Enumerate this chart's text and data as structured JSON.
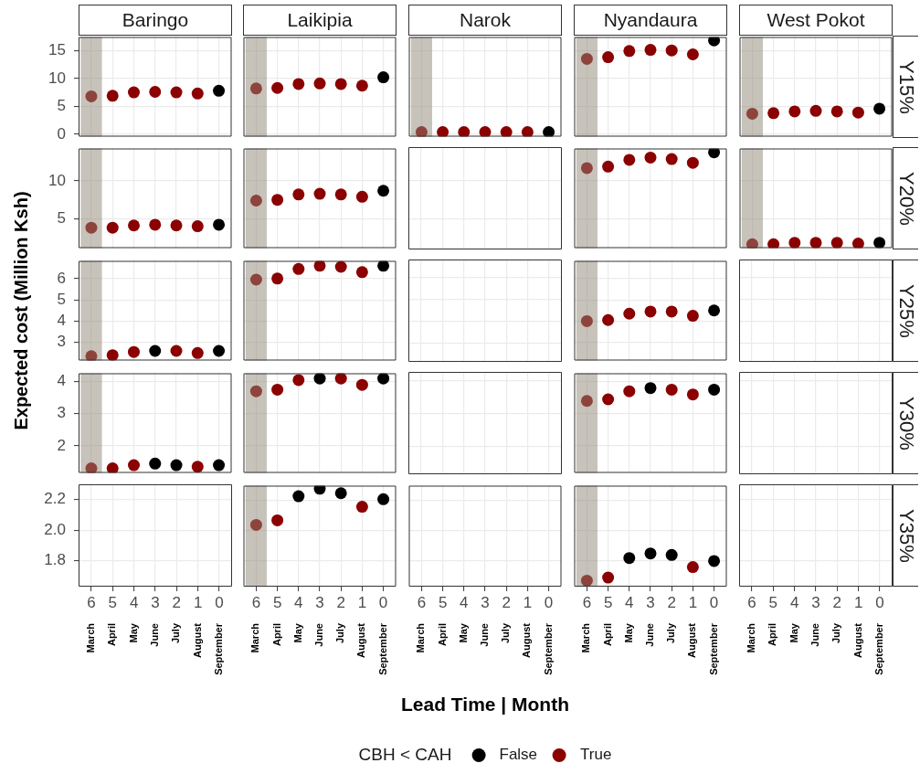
{
  "chart_data": [
    {
      "type": "scatter",
      "title": "Baringo",
      "x": [
        6,
        5,
        4,
        3,
        2,
        1,
        0
      ],
      "series": [
        {
          "color": "#000000",
          "values": [
            null,
            null,
            null,
            null,
            null,
            null,
            7.8
          ]
        },
        {
          "color": "#8b0000",
          "values": [
            6.8,
            6.9,
            7.5,
            7.6,
            7.5,
            7.3,
            null
          ]
        }
      ],
      "xlim": [
        6.6,
        -0.6
      ],
      "xticks": [
        6,
        5,
        4,
        3,
        2,
        1,
        0
      ],
      "ylim": [
        -0.4,
        17.4
      ],
      "yticks": [
        0,
        5,
        10,
        15
      ],
      "bands": [
        {
          "axis": "x",
          "from": 6.5,
          "to": 5.5,
          "color": "#c7c3bb"
        }
      ],
      "grid": true,
      "marker": "circle",
      "tick_labels": "y"
    },
    {
      "type": "scatter",
      "title": "Laikipia",
      "x": [
        6,
        5,
        4,
        3,
        2,
        1,
        0
      ],
      "series": [
        {
          "color": "#000000",
          "values": [
            null,
            null,
            null,
            null,
            null,
            null,
            10.2
          ]
        },
        {
          "color": "#8b0000",
          "values": [
            8.2,
            8.3,
            9.0,
            9.1,
            9.0,
            8.7,
            null
          ]
        }
      ],
      "xlim": [
        6.6,
        -0.6
      ],
      "xticks": [
        6,
        5,
        4,
        3,
        2,
        1,
        0
      ],
      "ylim": [
        -0.4,
        17.4
      ],
      "yticks": [
        0,
        5,
        10,
        15
      ],
      "bands": [
        {
          "axis": "x",
          "from": 6.5,
          "to": 5.5,
          "color": "#c7c3bb"
        }
      ],
      "grid": true,
      "marker": "circle",
      "tick_labels": false
    },
    {
      "type": "scatter",
      "title": "Narok",
      "x": [
        6,
        5,
        4,
        3,
        2,
        1,
        0
      ],
      "series": [
        {
          "color": "#000000",
          "values": [
            null,
            null,
            null,
            null,
            null,
            null,
            0.4
          ]
        },
        {
          "color": "#8b0000",
          "values": [
            0.4,
            0.4,
            0.4,
            0.4,
            0.4,
            0.4,
            null
          ]
        }
      ],
      "xlim": [
        6.6,
        -0.6
      ],
      "xticks": [
        6,
        5,
        4,
        3,
        2,
        1,
        0
      ],
      "ylim": [
        -0.4,
        17.4
      ],
      "yticks": [
        0,
        5,
        10,
        15
      ],
      "bands": [
        {
          "axis": "x",
          "from": 6.5,
          "to": 5.5,
          "color": "#c7c3bb"
        }
      ],
      "grid": true,
      "marker": "circle",
      "tick_labels": false
    },
    {
      "type": "scatter",
      "title": "Nyandaura",
      "x": [
        6,
        5,
        4,
        3,
        2,
        1,
        0
      ],
      "series": [
        {
          "color": "#000000",
          "values": [
            null,
            null,
            null,
            null,
            null,
            null,
            16.8
          ]
        },
        {
          "color": "#8b0000",
          "values": [
            13.5,
            13.8,
            14.9,
            15.1,
            15.0,
            14.3,
            null
          ]
        }
      ],
      "xlim": [
        6.6,
        -0.6
      ],
      "xticks": [
        6,
        5,
        4,
        3,
        2,
        1,
        0
      ],
      "ylim": [
        -0.4,
        17.4
      ],
      "yticks": [
        0,
        5,
        10,
        15
      ],
      "bands": [
        {
          "axis": "x",
          "from": 6.5,
          "to": 5.5,
          "color": "#c7c3bb"
        }
      ],
      "grid": true,
      "marker": "circle",
      "tick_labels": false
    },
    {
      "type": "scatter",
      "title": "West Pokot",
      "y2label": "Y15%",
      "x": [
        6,
        5,
        4,
        3,
        2,
        1,
        0
      ],
      "series": [
        {
          "color": "#000000",
          "values": [
            null,
            null,
            null,
            null,
            null,
            null,
            4.6
          ]
        },
        {
          "color": "#8b0000",
          "values": [
            3.7,
            3.8,
            4.1,
            4.2,
            4.1,
            3.9,
            null
          ]
        }
      ],
      "xlim": [
        6.6,
        -0.6
      ],
      "xticks": [
        6,
        5,
        4,
        3,
        2,
        1,
        0
      ],
      "ylim": [
        -0.4,
        17.4
      ],
      "yticks": [
        0,
        5,
        10,
        15
      ],
      "bands": [
        {
          "axis": "x",
          "from": 6.5,
          "to": 5.5,
          "color": "#c7c3bb"
        }
      ],
      "grid": true,
      "marker": "circle",
      "tick_labels": false
    },
    {
      "type": "scatter",
      "x": [
        6,
        5,
        4,
        3,
        2,
        1,
        0
      ],
      "series": [
        {
          "color": "#000000",
          "values": [
            null,
            null,
            null,
            null,
            null,
            null,
            4.2
          ]
        },
        {
          "color": "#8b0000",
          "values": [
            3.8,
            3.8,
            4.1,
            4.2,
            4.1,
            4.0,
            null
          ]
        }
      ],
      "xlim": [
        6.6,
        -0.6
      ],
      "xticks": [
        6,
        5,
        4,
        3,
        2,
        1,
        0
      ],
      "ylim": [
        1.1,
        14.3
      ],
      "yticks": [
        5,
        10
      ],
      "bands": [
        {
          "axis": "x",
          "from": 6.5,
          "to": 5.5,
          "color": "#c7c3bb"
        }
      ],
      "grid": true,
      "marker": "circle",
      "tick_labels": "y"
    },
    {
      "type": "scatter",
      "x": [
        6,
        5,
        4,
        3,
        2,
        1,
        0
      ],
      "series": [
        {
          "color": "#000000",
          "values": [
            null,
            null,
            null,
            null,
            null,
            null,
            8.7
          ]
        },
        {
          "color": "#8b0000",
          "values": [
            7.4,
            7.5,
            8.2,
            8.3,
            8.2,
            7.9,
            null
          ]
        }
      ],
      "xlim": [
        6.6,
        -0.6
      ],
      "xticks": [
        6,
        5,
        4,
        3,
        2,
        1,
        0
      ],
      "ylim": [
        1.1,
        14.3
      ],
      "yticks": [
        5,
        10
      ],
      "bands": [
        {
          "axis": "x",
          "from": 6.5,
          "to": 5.5,
          "color": "#c7c3bb"
        }
      ],
      "grid": true,
      "marker": "circle",
      "tick_labels": false
    },
    {
      "type": "scatter",
      "xlim": [
        6.6,
        -0.6
      ],
      "xticks": [
        6,
        5,
        4,
        3,
        2,
        1,
        0
      ],
      "ylim": [
        1.1,
        14.3
      ],
      "yticks": [
        5,
        10
      ],
      "grid": true,
      "tick_labels": false
    },
    {
      "type": "scatter",
      "x": [
        6,
        5,
        4,
        3,
        2,
        1,
        0
      ],
      "series": [
        {
          "color": "#000000",
          "values": [
            null,
            null,
            null,
            null,
            null,
            null,
            13.8
          ]
        },
        {
          "color": "#8b0000",
          "values": [
            11.7,
            11.9,
            12.8,
            13.1,
            12.9,
            12.4,
            null
          ]
        }
      ],
      "xlim": [
        6.6,
        -0.6
      ],
      "xticks": [
        6,
        5,
        4,
        3,
        2,
        1,
        0
      ],
      "ylim": [
        1.1,
        14.3
      ],
      "yticks": [
        5,
        10
      ],
      "bands": [
        {
          "axis": "x",
          "from": 6.5,
          "to": 5.5,
          "color": "#c7c3bb"
        }
      ],
      "grid": true,
      "marker": "circle",
      "tick_labels": false
    },
    {
      "type": "scatter",
      "y2label": "Y20%",
      "x": [
        6,
        5,
        4,
        3,
        2,
        1,
        0
      ],
      "series": [
        {
          "color": "#000000",
          "values": [
            null,
            null,
            null,
            null,
            null,
            null,
            1.8
          ]
        },
        {
          "color": "#8b0000",
          "values": [
            1.6,
            1.6,
            1.8,
            1.8,
            1.8,
            1.7,
            null
          ]
        }
      ],
      "xlim": [
        6.6,
        -0.6
      ],
      "xticks": [
        6,
        5,
        4,
        3,
        2,
        1,
        0
      ],
      "ylim": [
        1.1,
        14.3
      ],
      "yticks": [
        5,
        10
      ],
      "bands": [
        {
          "axis": "x",
          "from": 6.5,
          "to": 5.5,
          "color": "#c7c3bb"
        }
      ],
      "grid": true,
      "marker": "circle",
      "tick_labels": false
    },
    {
      "type": "scatter",
      "ylabel": "Expected cost (Million Ksh)",
      "x": [
        6,
        5,
        4,
        3,
        2,
        1,
        0
      ],
      "series": [
        {
          "color": "#000000",
          "values": [
            null,
            null,
            null,
            2.6,
            null,
            null,
            2.6
          ]
        },
        {
          "color": "#8b0000",
          "values": [
            2.35,
            2.4,
            2.55,
            null,
            2.6,
            2.5,
            null
          ]
        }
      ],
      "xlim": [
        6.6,
        -0.6
      ],
      "xticks": [
        6,
        5,
        4,
        3,
        2,
        1,
        0
      ],
      "ylim": [
        2.15,
        6.83
      ],
      "yticks": [
        3,
        4,
        5,
        6
      ],
      "bands": [
        {
          "axis": "x",
          "from": 6.5,
          "to": 5.5,
          "color": "#c7c3bb"
        }
      ],
      "grid": true,
      "marker": "circle",
      "tick_labels": "y"
    },
    {
      "type": "scatter",
      "x": [
        6,
        5,
        4,
        3,
        2,
        1,
        0
      ],
      "series": [
        {
          "color": "#000000",
          "values": [
            null,
            null,
            null,
            null,
            null,
            null,
            6.6
          ]
        },
        {
          "color": "#8b0000",
          "values": [
            5.95,
            6.0,
            6.45,
            6.6,
            6.55,
            6.3,
            null
          ]
        }
      ],
      "xlim": [
        6.6,
        -0.6
      ],
      "xticks": [
        6,
        5,
        4,
        3,
        2,
        1,
        0
      ],
      "ylim": [
        2.15,
        6.83
      ],
      "yticks": [
        3,
        4,
        5,
        6
      ],
      "bands": [
        {
          "axis": "x",
          "from": 6.5,
          "to": 5.5,
          "color": "#c7c3bb"
        }
      ],
      "grid": true,
      "marker": "circle",
      "tick_labels": false
    },
    {
      "type": "scatter",
      "xlim": [
        6.6,
        -0.6
      ],
      "xticks": [
        6,
        5,
        4,
        3,
        2,
        1,
        0
      ],
      "ylim": [
        2.15,
        6.83
      ],
      "yticks": [
        3,
        4,
        5,
        6
      ],
      "grid": true,
      "tick_labels": false
    },
    {
      "type": "scatter",
      "x": [
        6,
        5,
        4,
        3,
        2,
        1,
        0
      ],
      "series": [
        {
          "color": "#000000",
          "values": [
            null,
            null,
            null,
            null,
            null,
            null,
            4.5
          ]
        },
        {
          "color": "#8b0000",
          "values": [
            4.0,
            4.05,
            4.35,
            4.45,
            4.45,
            4.25,
            null
          ]
        }
      ],
      "xlim": [
        6.6,
        -0.6
      ],
      "xticks": [
        6,
        5,
        4,
        3,
        2,
        1,
        0
      ],
      "ylim": [
        2.15,
        6.83
      ],
      "yticks": [
        3,
        4,
        5,
        6
      ],
      "bands": [
        {
          "axis": "x",
          "from": 6.5,
          "to": 5.5,
          "color": "#c7c3bb"
        }
      ],
      "grid": true,
      "marker": "circle",
      "tick_labels": false
    },
    {
      "type": "scatter",
      "y2label": "Y25%",
      "xlim": [
        6.6,
        -0.6
      ],
      "xticks": [
        6,
        5,
        4,
        3,
        2,
        1,
        0
      ],
      "ylim": [
        2.15,
        6.83
      ],
      "yticks": [
        3,
        4,
        5,
        6
      ],
      "grid": true,
      "tick_labels": false
    },
    {
      "type": "scatter",
      "x": [
        6,
        5,
        4,
        3,
        2,
        1,
        0
      ],
      "series": [
        {
          "color": "#000000",
          "values": [
            null,
            null,
            null,
            1.45,
            1.4,
            null,
            1.4
          ]
        },
        {
          "color": "#8b0000",
          "values": [
            1.3,
            1.3,
            1.4,
            null,
            null,
            1.35,
            null
          ]
        }
      ],
      "xlim": [
        6.6,
        -0.6
      ],
      "xticks": [
        6,
        5,
        4,
        3,
        2,
        1,
        0
      ],
      "ylim": [
        1.16,
        4.26
      ],
      "yticks": [
        2,
        3,
        4
      ],
      "bands": [
        {
          "axis": "x",
          "from": 6.5,
          "to": 5.5,
          "color": "#c7c3bb"
        }
      ],
      "grid": true,
      "marker": "circle",
      "tick_labels": "y"
    },
    {
      "type": "scatter",
      "x": [
        6,
        5,
        4,
        3,
        2,
        1,
        0
      ],
      "series": [
        {
          "color": "#000000",
          "values": [
            null,
            null,
            null,
            4.1,
            null,
            null,
            4.1
          ]
        },
        {
          "color": "#8b0000",
          "values": [
            3.7,
            3.75,
            4.05,
            null,
            4.1,
            3.9,
            null
          ]
        }
      ],
      "xlim": [
        6.6,
        -0.6
      ],
      "xticks": [
        6,
        5,
        4,
        3,
        2,
        1,
        0
      ],
      "ylim": [
        1.16,
        4.26
      ],
      "yticks": [
        2,
        3,
        4
      ],
      "bands": [
        {
          "axis": "x",
          "from": 6.5,
          "to": 5.5,
          "color": "#c7c3bb"
        }
      ],
      "grid": true,
      "marker": "circle",
      "tick_labels": false
    },
    {
      "type": "scatter",
      "xlim": [
        6.6,
        -0.6
      ],
      "xticks": [
        6,
        5,
        4,
        3,
        2,
        1,
        0
      ],
      "ylim": [
        1.16,
        4.26
      ],
      "yticks": [
        2,
        3,
        4
      ],
      "grid": true,
      "tick_labels": false
    },
    {
      "type": "scatter",
      "x": [
        6,
        5,
        4,
        3,
        2,
        1,
        0
      ],
      "series": [
        {
          "color": "#000000",
          "values": [
            null,
            null,
            null,
            3.8,
            null,
            null,
            3.75
          ]
        },
        {
          "color": "#8b0000",
          "values": [
            3.4,
            3.45,
            3.7,
            null,
            3.75,
            3.6,
            null
          ]
        }
      ],
      "xlim": [
        6.6,
        -0.6
      ],
      "xticks": [
        6,
        5,
        4,
        3,
        2,
        1,
        0
      ],
      "ylim": [
        1.16,
        4.26
      ],
      "yticks": [
        2,
        3,
        4
      ],
      "bands": [
        {
          "axis": "x",
          "from": 6.5,
          "to": 5.5,
          "color": "#c7c3bb"
        }
      ],
      "grid": true,
      "marker": "circle",
      "tick_labels": false
    },
    {
      "type": "scatter",
      "y2label": "Y30%",
      "xlim": [
        6.6,
        -0.6
      ],
      "xticks": [
        6,
        5,
        4,
        3,
        2,
        1,
        0
      ],
      "ylim": [
        1.16,
        4.26
      ],
      "yticks": [
        2,
        3,
        4
      ],
      "grid": true,
      "tick_labels": false
    },
    {
      "type": "scatter",
      "categories": [
        "March",
        "April",
        "May",
        "June",
        "July",
        "August",
        "September"
      ],
      "x2lim": [
        6.6,
        -0.6
      ],
      "x2ticks": [
        6,
        5,
        4,
        3,
        2,
        1,
        0
      ],
      "ylim": [
        1.63,
        2.3
      ],
      "yticks": [
        1.8,
        {
          "value": 2,
          "label": "2.0"
        },
        2.2
      ],
      "grid": true
    },
    {
      "type": "scatter",
      "categories": [
        "March",
        "April",
        "May",
        "June",
        "July",
        "August",
        "September"
      ],
      "series": [
        {
          "color": "#000000",
          "values": [
            null,
            null,
            2.23,
            2.28,
            2.25,
            null,
            2.21
          ]
        },
        {
          "color": "#8b0000",
          "values": [
            2.04,
            2.07,
            null,
            null,
            null,
            2.16,
            null
          ]
        }
      ],
      "x2lim": [
        6.6,
        -0.6
      ],
      "x2ticks": [
        6,
        5,
        4,
        3,
        2,
        1,
        0
      ],
      "ylim": [
        1.63,
        2.3
      ],
      "yticks": [
        1.8,
        2,
        2.2
      ],
      "bands": [
        {
          "axis": "x2",
          "from": 6.5,
          "to": 5.5,
          "color": "#c7c3bb"
        }
      ],
      "grid": true,
      "marker": "circle",
      "tick_labels": "x"
    },
    {
      "type": "scatter",
      "xlabel": "Lead Time | Month",
      "legend_title": "CBH < CAH",
      "legend": "bottom",
      "categories": [
        "March",
        "April",
        "May",
        "June",
        "July",
        "August",
        "September"
      ],
      "series": [
        {
          "name": "False",
          "color": "#000000",
          "values": [
            null,
            null,
            null,
            null,
            null,
            null,
            null
          ]
        },
        {
          "name": "True",
          "color": "#8b0000",
          "values": [
            null,
            null,
            null,
            null,
            null,
            null,
            null
          ]
        }
      ],
      "x2lim": [
        6.6,
        -0.6
      ],
      "x2ticks": [
        6,
        5,
        4,
        3,
        2,
        1,
        0
      ],
      "ylim": [
        1.63,
        2.3
      ],
      "yticks": [
        1.8,
        2,
        2.2
      ],
      "grid": true,
      "marker": "circle",
      "tick_labels": "x"
    },
    {
      "type": "scatter",
      "categories": [
        "March",
        "April",
        "May",
        "June",
        "July",
        "August",
        "September"
      ],
      "series": [
        {
          "color": "#000000",
          "values": [
            null,
            null,
            1.82,
            1.85,
            1.84,
            null,
            1.8
          ]
        },
        {
          "color": "#8b0000",
          "values": [
            1.67,
            1.69,
            null,
            null,
            null,
            1.76,
            null
          ]
        }
      ],
      "x2lim": [
        6.6,
        -0.6
      ],
      "x2ticks": [
        6,
        5,
        4,
        3,
        2,
        1,
        0
      ],
      "ylim": [
        1.63,
        2.3
      ],
      "yticks": [
        1.8,
        2,
        2.2
      ],
      "bands": [
        {
          "axis": "x2",
          "from": 6.5,
          "to": 5.5,
          "color": "#c7c3bb"
        }
      ],
      "grid": true,
      "marker": "circle",
      "tick_labels": "x"
    },
    {
      "type": "scatter",
      "y2label": "Y35%",
      "categories": [
        "March",
        "April",
        "May",
        "June",
        "July",
        "August",
        "September"
      ],
      "x2lim": [
        6.6,
        -0.6
      ],
      "x2ticks": [
        6,
        5,
        4,
        3,
        2,
        1,
        0
      ],
      "ylim": [
        1.63,
        2.3
      ],
      "yticks": [
        1.8,
        2,
        2.2
      ],
      "grid": true,
      "tick_labels": "x"
    }
  ]
}
